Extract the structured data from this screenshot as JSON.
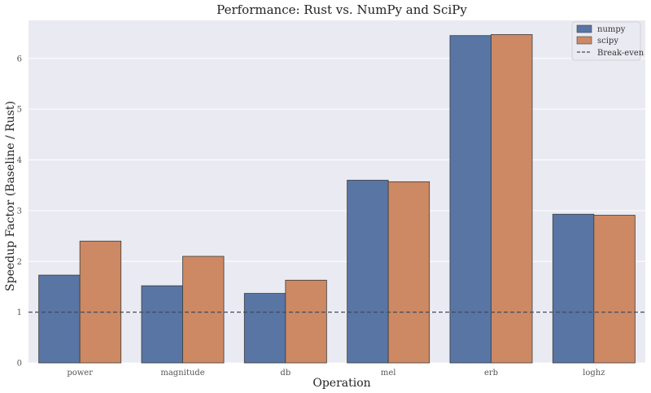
{
  "chart_data": {
    "type": "bar",
    "title": "Performance: Rust vs. NumPy and SciPy",
    "xlabel": "Operation",
    "ylabel": "Speedup Factor (Baseline / Rust)",
    "categories": [
      "power",
      "magnitude",
      "db",
      "mel",
      "erb",
      "loghz"
    ],
    "series": [
      {
        "name": "numpy",
        "color": "#5875a4",
        "values": [
          1.73,
          1.52,
          1.37,
          3.6,
          6.45,
          2.93
        ]
      },
      {
        "name": "scipy",
        "color": "#cc8963",
        "values": [
          2.4,
          2.1,
          1.63,
          3.57,
          6.47,
          2.91
        ]
      }
    ],
    "reference_line": {
      "name": "Break-even",
      "value": 1.0,
      "style": "dashed",
      "color": "#444a5e"
    },
    "ylim": [
      0,
      6.75
    ],
    "yticks": [
      0,
      1,
      2,
      3,
      4,
      5,
      6
    ],
    "grid": true,
    "legend_position": "top-right",
    "background_color": "#eaeaf2"
  }
}
